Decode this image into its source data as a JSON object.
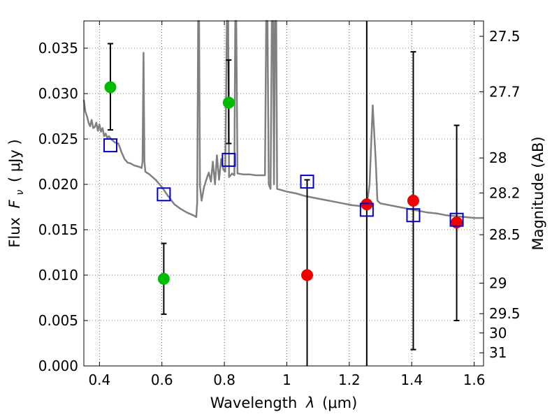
{
  "chart_data": {
    "type": "scatter",
    "x_axis": {
      "label_prefix": "Wavelength",
      "label_symbol": "λ",
      "label_unit": "(μm)",
      "range": [
        0.35,
        1.63
      ],
      "ticks": [
        0.4,
        0.6,
        0.8,
        1.0,
        1.2,
        1.4,
        1.6
      ],
      "tick_labels": [
        "0.4",
        "0.6",
        "0.8",
        "1",
        "1.2",
        "1.4",
        "1.6"
      ]
    },
    "y_axis": {
      "label_prefix": "Flux",
      "label_symbol": "F",
      "label_subscript": "ν",
      "label_unit": "( μJy )",
      "range": [
        0.0,
        0.038
      ],
      "ticks": [
        0.0,
        0.005,
        0.01,
        0.015,
        0.02,
        0.025,
        0.03,
        0.035
      ],
      "tick_labels": [
        "0.000",
        "0.005",
        "0.010",
        "0.015",
        "0.020",
        "0.025",
        "0.030",
        "0.035"
      ]
    },
    "y2_axis": {
      "label": "Magnitude (AB)",
      "ticks": [
        {
          "mag": 27.5,
          "label": "27.5"
        },
        {
          "mag": 27.7,
          "label": "27.7"
        },
        {
          "mag": 28,
          "label": "28"
        },
        {
          "mag": 28.2,
          "label": "28.2"
        },
        {
          "mag": 28.5,
          "label": "28.5"
        },
        {
          "mag": 29,
          "label": "29"
        },
        {
          "mag": 29.5,
          "label": "29.5"
        },
        {
          "mag": 30,
          "label": "30"
        },
        {
          "mag": 31,
          "label": "31"
        }
      ]
    },
    "grid": true,
    "colors": {
      "model": "#808080",
      "green": "#00bb00",
      "red": "#ee0000",
      "square": "#0000cc",
      "errorbar": "#000000"
    },
    "model_spectrum": [
      [
        0.35,
        0.0293
      ],
      [
        0.355,
        0.028
      ],
      [
        0.36,
        0.0275
      ],
      [
        0.365,
        0.0268
      ],
      [
        0.37,
        0.0264
      ],
      [
        0.375,
        0.0271
      ],
      [
        0.38,
        0.0262
      ],
      [
        0.385,
        0.0263
      ],
      [
        0.39,
        0.0268
      ],
      [
        0.395,
        0.0259
      ],
      [
        0.4,
        0.0266
      ],
      [
        0.405,
        0.0258
      ],
      [
        0.41,
        0.0262
      ],
      [
        0.415,
        0.0253
      ],
      [
        0.42,
        0.0256
      ],
      [
        0.425,
        0.0251
      ],
      [
        0.43,
        0.0253
      ],
      [
        0.44,
        0.0249
      ],
      [
        0.45,
        0.0246
      ],
      [
        0.46,
        0.0245
      ],
      [
        0.465,
        0.0241
      ],
      [
        0.47,
        0.0236
      ],
      [
        0.475,
        0.0232
      ],
      [
        0.48,
        0.0228
      ],
      [
        0.49,
        0.0224
      ],
      [
        0.5,
        0.0223
      ],
      [
        0.51,
        0.0221
      ],
      [
        0.52,
        0.022
      ],
      [
        0.53,
        0.0219
      ],
      [
        0.535,
        0.0218
      ],
      [
        0.538,
        0.0225
      ],
      [
        0.541,
        0.0345
      ],
      [
        0.544,
        0.0225
      ],
      [
        0.547,
        0.0214
      ],
      [
        0.56,
        0.0211
      ],
      [
        0.58,
        0.0205
      ],
      [
        0.6,
        0.0197
      ],
      [
        0.62,
        0.0187
      ],
      [
        0.64,
        0.0178
      ],
      [
        0.66,
        0.0173
      ],
      [
        0.68,
        0.0169
      ],
      [
        0.7,
        0.0166
      ],
      [
        0.71,
        0.0164
      ],
      [
        0.713,
        0.018
      ],
      [
        0.716,
        0.0382
      ],
      [
        0.719,
        0.0382
      ],
      [
        0.722,
        0.0198
      ],
      [
        0.727,
        0.0182
      ],
      [
        0.735,
        0.0197
      ],
      [
        0.743,
        0.0206
      ],
      [
        0.75,
        0.0213
      ],
      [
        0.757,
        0.0203
      ],
      [
        0.763,
        0.0225
      ],
      [
        0.77,
        0.02
      ],
      [
        0.776,
        0.0232
      ],
      [
        0.783,
        0.0205
      ],
      [
        0.79,
        0.0228
      ],
      [
        0.797,
        0.0216
      ],
      [
        0.803,
        0.0214
      ],
      [
        0.808,
        0.0382
      ],
      [
        0.812,
        0.0382
      ],
      [
        0.815,
        0.0208
      ],
      [
        0.825,
        0.0212
      ],
      [
        0.832,
        0.021
      ],
      [
        0.835,
        0.0382
      ],
      [
        0.838,
        0.0382
      ],
      [
        0.842,
        0.0212
      ],
      [
        0.86,
        0.0211
      ],
      [
        0.88,
        0.0211
      ],
      [
        0.9,
        0.021
      ],
      [
        0.92,
        0.021
      ],
      [
        0.93,
        0.021
      ],
      [
        0.934,
        0.0382
      ],
      [
        0.938,
        0.0382
      ],
      [
        0.942,
        0.02
      ],
      [
        0.948,
        0.0195
      ],
      [
        0.952,
        0.0382
      ],
      [
        0.956,
        0.0382
      ],
      [
        0.959,
        0.02
      ],
      [
        0.962,
        0.0382
      ],
      [
        0.966,
        0.0382
      ],
      [
        0.969,
        0.0195
      ],
      [
        0.98,
        0.0194
      ],
      [
        1.0,
        0.0192
      ],
      [
        1.03,
        0.019
      ],
      [
        1.06,
        0.0187
      ],
      [
        1.09,
        0.0185
      ],
      [
        1.12,
        0.0183
      ],
      [
        1.15,
        0.0181
      ],
      [
        1.18,
        0.0179
      ],
      [
        1.21,
        0.0177
      ],
      [
        1.24,
        0.0176
      ],
      [
        1.255,
        0.0174
      ],
      [
        1.265,
        0.02
      ],
      [
        1.275,
        0.0287
      ],
      [
        1.285,
        0.0225
      ],
      [
        1.29,
        0.0182
      ],
      [
        1.3,
        0.0179
      ],
      [
        1.33,
        0.0177
      ],
      [
        1.36,
        0.0175
      ],
      [
        1.39,
        0.0173
      ],
      [
        1.42,
        0.0171
      ],
      [
        1.45,
        0.0169
      ],
      [
        1.48,
        0.0168
      ],
      [
        1.51,
        0.0166
      ],
      [
        1.54,
        0.0165
      ],
      [
        1.57,
        0.0164
      ],
      [
        1.6,
        0.0163
      ],
      [
        1.63,
        0.0163
      ]
    ],
    "series": [
      {
        "marker": "circle",
        "color": "green",
        "points": [
          {
            "x": 0.435,
            "y": 0.0307,
            "err_lo": 0.026,
            "err_hi": 0.0355
          },
          {
            "x": 0.606,
            "y": 0.0096,
            "err_lo": 0.0057,
            "err_hi": 0.0135
          },
          {
            "x": 0.814,
            "y": 0.029,
            "err_lo": 0.0245,
            "err_hi": 0.0337
          }
        ]
      },
      {
        "marker": "circle",
        "color": "red",
        "points": [
          {
            "x": 1.065,
            "y": 0.01,
            "err_lo": 0.0,
            "err_hi": 0.0205
          },
          {
            "x": 1.256,
            "y": 0.0178,
            "err_lo": 0.0,
            "err_hi": 0.038
          },
          {
            "x": 1.405,
            "y": 0.0182,
            "err_lo": 0.0018,
            "err_hi": 0.0346
          },
          {
            "x": 1.544,
            "y": 0.0158,
            "err_lo": 0.005,
            "err_hi": 0.0265
          }
        ]
      },
      {
        "marker": "square",
        "color": "square",
        "points": [
          {
            "x": 0.435,
            "y": 0.0243
          },
          {
            "x": 0.606,
            "y": 0.0189
          },
          {
            "x": 0.814,
            "y": 0.0227
          },
          {
            "x": 1.065,
            "y": 0.0203
          },
          {
            "x": 1.256,
            "y": 0.0172
          },
          {
            "x": 1.405,
            "y": 0.0166
          },
          {
            "x": 1.544,
            "y": 0.0161
          }
        ]
      }
    ]
  }
}
